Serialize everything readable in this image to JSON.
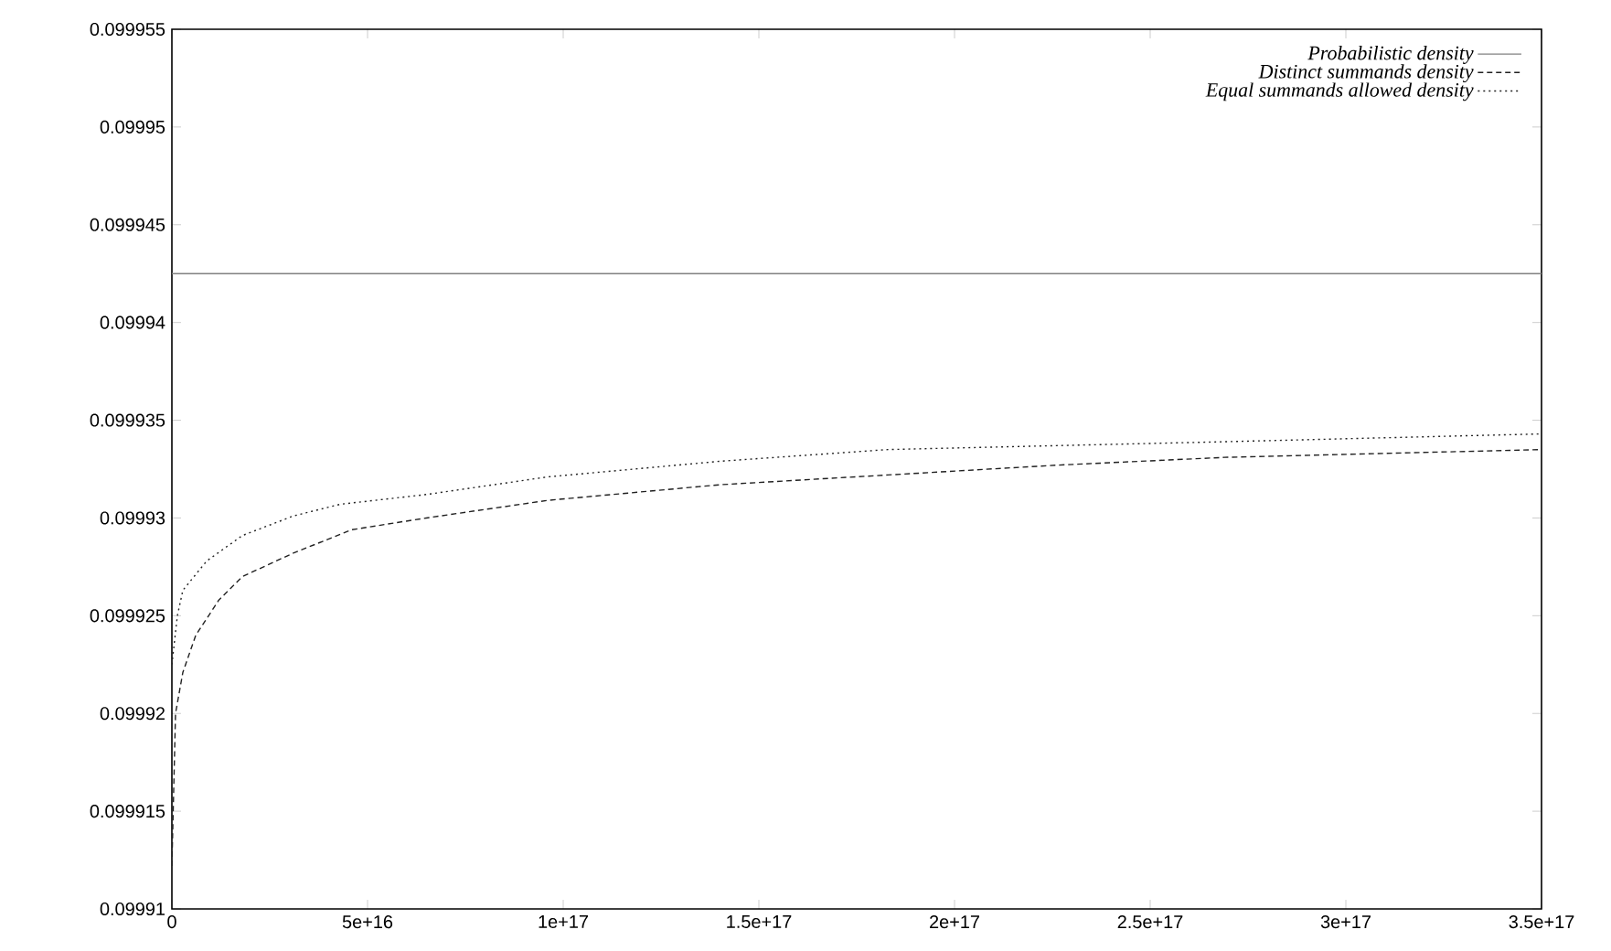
{
  "chart_data": {
    "type": "line",
    "legend": "top right",
    "marker": "none",
    "xlim": [
      0,
      3.5e+17
    ],
    "ylim": [
      0.09991,
      0.099955
    ],
    "xticks": [
      0,
      {
        "value": 5e+16,
        "label": "5e+16"
      },
      {
        "value": 1e+17,
        "label": "1e+17"
      },
      {
        "value": 1.5e+17,
        "label": "1.5e+17"
      },
      {
        "value": 2e+17,
        "label": "2e+17"
      },
      {
        "value": 2.5e+17,
        "label": "2.5e+17"
      },
      {
        "value": 3e+17,
        "label": "3e+17"
      },
      {
        "value": 3.5e+17,
        "label": "3.5e+17"
      }
    ],
    "yticks": [
      0.09991,
      0.099915,
      0.09992,
      0.099925,
      0.09993,
      0.099935,
      0.09994,
      0.099945,
      0.09995,
      0.099955
    ],
    "series": [
      {
        "name": "Probabilistic density",
        "color": "#808080",
        "line_style": "solid",
        "x": [
          0,
          3.5e+17
        ],
        "values": [
          0.0999425,
          0.0999425
        ]
      },
      {
        "name": "Distinct summands density",
        "color": "#202020",
        "line_style": "dashed",
        "x": [
          0,
          930000000000000.0,
          2800000000000000.0,
          6100000000000000.0,
          1.2e+16,
          1.8e+16,
          3.1e+16,
          4.6e+16,
          6.5e+16,
          9.6e+16,
          1.4e+17,
          1.83e+17,
          2.26e+17,
          2.69e+17,
          3.5e+17
        ],
        "values": [
          0.0999122,
          0.09992,
          0.0999221,
          0.099924,
          0.0999258,
          0.099927,
          0.0999282,
          0.0999294,
          0.09993,
          0.0999309,
          0.0999317,
          0.0999322,
          0.0999327,
          0.0999331,
          0.0999335
        ]
      },
      {
        "name": "Equal summands allowed density",
        "color": "#202020",
        "line_style": "dotted",
        "x": [
          0,
          1400000000000000.0,
          2800000000000000.0,
          8900000000000000.0,
          1.8e+16,
          3.1e+16,
          4.3e+16,
          6.5e+16,
          9.6e+16,
          1.4e+17,
          1.83e+17,
          2.26e+17,
          2.69e+17,
          3.5e+17
        ],
        "values": [
          0.0999225,
          0.099925,
          0.0999263,
          0.0999278,
          0.0999291,
          0.0999301,
          0.0999307,
          0.0999312,
          0.0999321,
          0.0999329,
          0.0999335,
          0.0999337,
          0.0999339,
          0.0999343
        ]
      }
    ]
  }
}
